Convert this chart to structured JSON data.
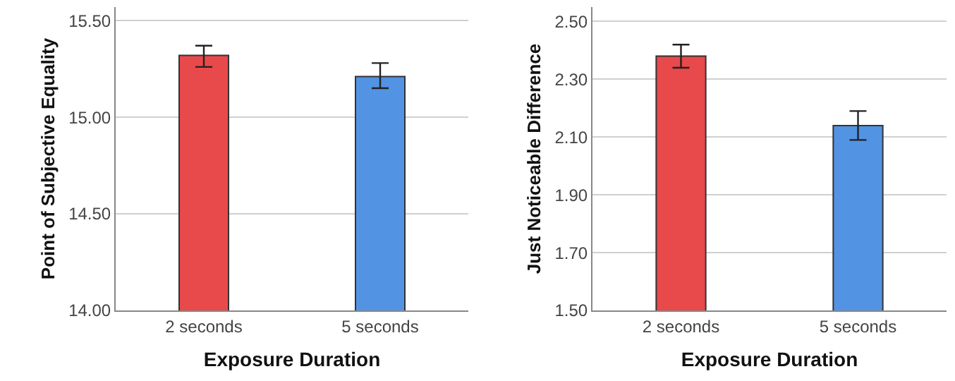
{
  "chart_data": [
    {
      "type": "bar",
      "categories": [
        "2 seconds",
        "5 seconds"
      ],
      "values": [
        15.32,
        15.21
      ],
      "colors": [
        "#e8494b",
        "#5293e3"
      ],
      "errors": [
        [
          15.26,
          15.37
        ],
        [
          15.15,
          15.28
        ]
      ],
      "xlabel": "Exposure Duration",
      "ylabel": "Point of Subjective Equality",
      "ylim": [
        14.0,
        15.57
      ],
      "yticks": [
        {
          "value": 14.0,
          "label": "14.00"
        },
        {
          "value": 14.5,
          "label": "14.50"
        },
        {
          "value": 15.0,
          "label": "15.00"
        },
        {
          "value": 15.5,
          "label": "15.50"
        }
      ],
      "grid": "y"
    },
    {
      "type": "bar",
      "categories": [
        "2 seconds",
        "5 seconds"
      ],
      "values": [
        2.38,
        2.14
      ],
      "colors": [
        "#e8494b",
        "#5293e3"
      ],
      "errors": [
        [
          2.34,
          2.42
        ],
        [
          2.09,
          2.19
        ]
      ],
      "xlabel": "Exposure Duration",
      "ylabel": "Just Noticeable Difference",
      "ylim": [
        1.5,
        2.55
      ],
      "yticks": [
        {
          "value": 1.5,
          "label": "1.50"
        },
        {
          "value": 1.7,
          "label": "1.70"
        },
        {
          "value": 1.9,
          "label": "1.90"
        },
        {
          "value": 2.1,
          "label": "2.10"
        },
        {
          "value": 2.3,
          "label": "2.30"
        },
        {
          "value": 2.5,
          "label": "2.50"
        }
      ],
      "grid": "y"
    }
  ]
}
